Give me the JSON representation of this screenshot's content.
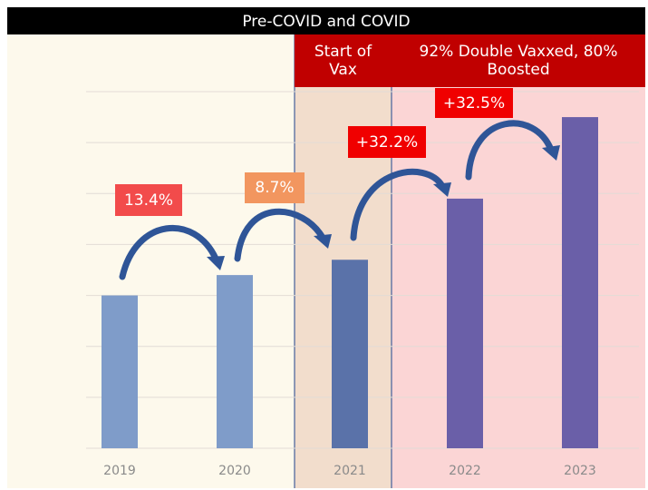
{
  "chart_data": {
    "type": "bar",
    "title": "Pre-COVID and COVID",
    "regions": [
      {
        "label": "Start of Vax",
        "color": "#c00000"
      },
      {
        "label": "92% Double Vaxxed, 80% Boosted",
        "color": "#c00000"
      }
    ],
    "categories": [
      "2019",
      "2020",
      "2021",
      "2022",
      "2023"
    ],
    "values": [
      3.0,
      3.4,
      3.7,
      4.9,
      6.5
    ],
    "colors": [
      "#7f9cc9",
      "#7f9cc9",
      "#5a72a9",
      "#6a5fa8",
      "#6a5fa8"
    ],
    "annotations": [
      {
        "text": "13.4%",
        "color": "#f24b4b"
      },
      {
        "text": "8.7%",
        "color": "#f2965f"
      },
      {
        "text": "+32.2%",
        "color": "#f00000"
      },
      {
        "text": "+32.5%",
        "color": "#f00000"
      }
    ],
    "ylim": [
      0,
      7
    ],
    "yticks": [
      0,
      1,
      2,
      3,
      4,
      5,
      6,
      7
    ],
    "grid": true
  }
}
